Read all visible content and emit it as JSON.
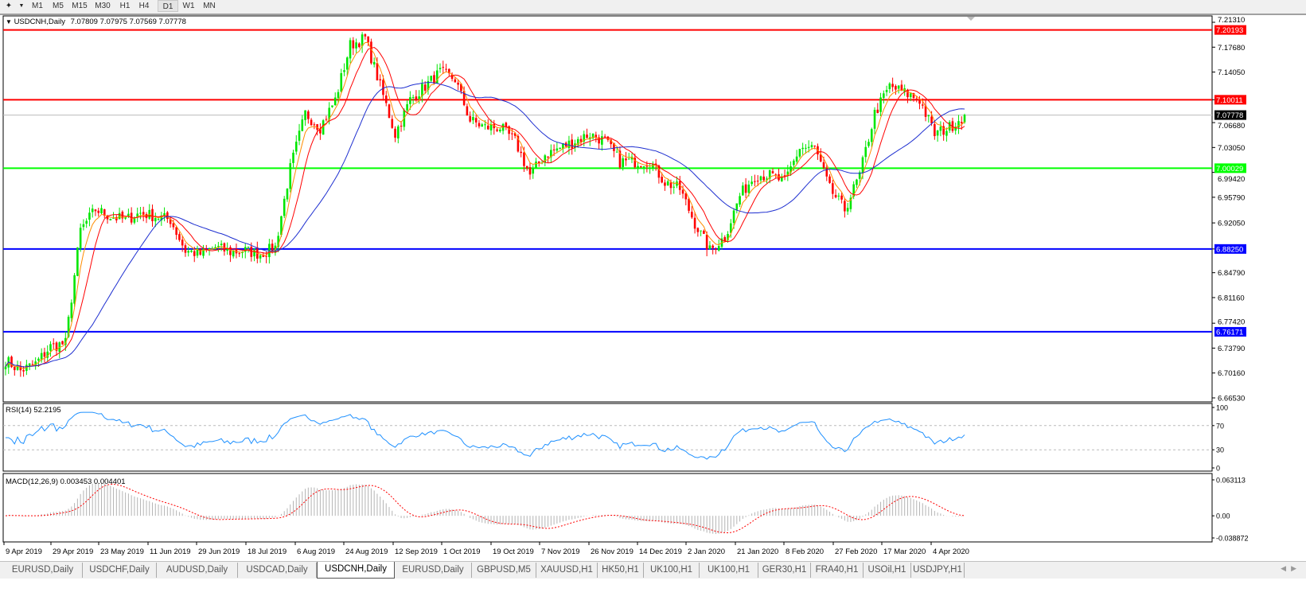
{
  "toolbar": {
    "timeframes": [
      "M1",
      "M5",
      "M15",
      "M30",
      "H1",
      "H4",
      "D1",
      "W1",
      "MN"
    ],
    "active_timeframe": "D1",
    "icons": [
      "line-studies-icon",
      "dropdown-icon"
    ]
  },
  "chart": {
    "symbol_header": "USDCNH,Daily",
    "ohlc": "7.07809 7.07975 7.07569 7.07778",
    "rsi_header": "RSI(14) 52.2195",
    "macd_header": "MACD(12,26,9) 0.003453 0.004401"
  },
  "chart_data": {
    "type": "candlestick",
    "symbol": "USDCNH",
    "period": "Daily",
    "colors": {
      "bull": "#00e600",
      "bear": "#ff0000",
      "ma_fast": "#ff8c00",
      "ma_mid": "#ff0000",
      "ma_slow": "#1e2fd0",
      "rsi": "#1e90ff",
      "macd_hist": "#b4b4b4",
      "macd_signal": "#ff0000"
    },
    "price_axis_ticks": [
      "7.21310",
      "7.17680",
      "7.14050",
      "7.10011",
      "7.06680",
      "7.03050",
      "6.99420",
      "6.95790",
      "6.92050",
      "6.88250",
      "6.84790",
      "6.81160",
      "6.77420",
      "6.73790",
      "6.70160",
      "6.66530"
    ],
    "price_axis_values": [
      7.2131,
      7.1768,
      7.1405,
      7.10011,
      7.0668,
      7.0305,
      6.9942,
      6.9579,
      6.9205,
      6.8825,
      6.8479,
      6.8116,
      6.7742,
      6.7379,
      6.7016,
      6.6653
    ],
    "ylim": [
      6.6653,
      7.2131
    ],
    "horizontal_lines": [
      {
        "label": "7.20193",
        "value": 7.20193,
        "color": "#ff0000"
      },
      {
        "label": "7.10011",
        "value": 7.10011,
        "color": "#ff0000"
      },
      {
        "label": "7.00029",
        "value": 7.00029,
        "color": "#00ff00"
      },
      {
        "label": "6.88250",
        "value": 6.8825,
        "color": "#0000ff"
      },
      {
        "label": "6.76171",
        "value": 6.76171,
        "color": "#0000ff"
      }
    ],
    "current_price": {
      "label": "7.07778",
      "value": 7.07778
    },
    "x_tick_labels": [
      "9 Apr 2019",
      "29 Apr 2019",
      "23 May 2019",
      "11 Jun 2019",
      "29 Jun 2019",
      "18 Jul 2019",
      "6 Aug 2019",
      "24 Aug 2019",
      "12 Sep 2019",
      "1 Oct 2019",
      "19 Oct 2019",
      "7 Nov 2019",
      "26 Nov 2019",
      "14 Dec 2019",
      "2 Jan 2020",
      "21 Jan 2020",
      "8 Feb 2020",
      "27 Feb 2020",
      "17 Mar 2020",
      "4 Apr 2020"
    ],
    "weekly_close_approx": [
      6.72,
      6.705,
      6.715,
      6.74,
      6.745,
      6.91,
      6.94,
      6.93,
      6.925,
      6.935,
      6.93,
      6.925,
      6.88,
      6.875,
      6.885,
      6.878,
      6.88,
      6.875,
      6.885,
      7.0,
      7.08,
      7.06,
      7.1,
      7.18,
      7.19,
      7.12,
      7.05,
      7.1,
      7.12,
      7.14,
      7.13,
      7.07,
      7.06,
      7.06,
      7.04,
      6.99,
      7.02,
      7.03,
      7.04,
      7.05,
      7.04,
      7.01,
      7.01,
      7.01,
      6.98,
      6.97,
      6.92,
      6.88,
      6.9,
      6.96,
      6.99,
      6.99,
      6.98,
      7.03,
      7.03,
      6.97,
      6.94,
      6.99,
      7.08,
      7.12,
      7.11,
      7.1,
      7.05,
      7.06,
      7.078
    ],
    "rsi": {
      "ticks": [
        "100",
        "70",
        "30",
        "0"
      ],
      "levels": [
        70,
        30
      ],
      "ylim": [
        0,
        100
      ]
    },
    "macd": {
      "ticks": [
        "0.063113",
        "0.00",
        "-0.038872"
      ],
      "ylim": [
        -0.038872,
        0.063113
      ]
    }
  },
  "tabs": {
    "items": [
      "EURUSD,Daily",
      "USDCHF,Daily",
      "AUDUSD,Daily",
      "USDCAD,Daily",
      "USDCNH,Daily",
      "EURUSD,Daily",
      "GBPUSD,M5",
      "XAUUSD,H1",
      "HK50,H1",
      "UK100,H1",
      "UK100,H1",
      "GER30,H1",
      "FRA40,H1",
      "USOil,H1",
      "USDJPY,H1"
    ],
    "active": "USDCNH,Daily"
  }
}
